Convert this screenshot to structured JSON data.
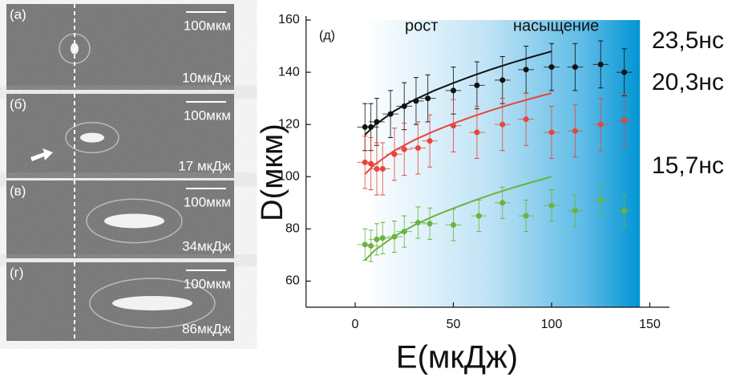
{
  "panels": [
    {
      "label": "(а)",
      "scale": "100мкм",
      "energy": "10мкДж"
    },
    {
      "label": "(б)",
      "scale": "100мкм",
      "energy": "17 мкДж"
    },
    {
      "label": "(в)",
      "scale": "100мкм",
      "energy": "34мкДж"
    },
    {
      "label": "(г)",
      "scale": "100мкм",
      "energy": "86мкДж"
    }
  ],
  "chart_data": {
    "type": "scatter",
    "panel_label": "(д)",
    "annotations": [
      "рост",
      "насыщение"
    ],
    "xlabel": "E(мкДж)",
    "ylabel": "D(мкм)",
    "xlim": [
      -25,
      160
    ],
    "ylim": [
      50,
      160
    ],
    "xticks": [
      0,
      50,
      100,
      150
    ],
    "yticks": [
      60,
      80,
      100,
      120,
      140,
      160
    ],
    "shaded_region": {
      "xlim": [
        5,
        145
      ],
      "color": "#0095d4"
    },
    "series": [
      {
        "name": "23,5нс",
        "color": "#111111",
        "x": [
          5,
          8,
          11,
          18,
          25,
          31,
          37,
          50,
          62,
          75,
          87,
          100,
          112,
          125,
          137
        ],
        "values": [
          119,
          119,
          121,
          124,
          127,
          129,
          130,
          133,
          135,
          137,
          141,
          142,
          142,
          143,
          140
        ],
        "errors": [
          9,
          9,
          9,
          9,
          9,
          9,
          9,
          9,
          9,
          9,
          9,
          9,
          9,
          9,
          9
        ],
        "xerror": 4,
        "fit": {
          "x": [
            5,
            10,
            20,
            30,
            40,
            50,
            60,
            70,
            80,
            90,
            100
          ],
          "values": [
            116,
            119.8,
            125.2,
            129.4,
            132.9,
            135.9,
            138.7,
            141.3,
            143.7,
            145.9,
            148
          ]
        }
      },
      {
        "name": "20,3нс",
        "color": "#e8453c",
        "x": [
          5,
          8,
          11,
          14,
          20,
          25,
          32,
          38,
          50,
          62,
          75,
          87,
          100,
          112,
          125,
          137
        ],
        "values": [
          105.5,
          105,
          103,
          103,
          108.6,
          110.5,
          111,
          113.7,
          119.5,
          117,
          120,
          122,
          117,
          117.5,
          120,
          121.5
        ],
        "errors": [
          10,
          10,
          10,
          10,
          10,
          10,
          10,
          10,
          10,
          10,
          10,
          10,
          10,
          10,
          10,
          10
        ],
        "xerror": 4,
        "fit": {
          "x": [
            5,
            10,
            20,
            30,
            40,
            50,
            60,
            70,
            80,
            90,
            100
          ],
          "values": [
            101,
            104.7,
            110,
            114,
            117.4,
            120.4,
            123.1,
            125.6,
            127.9,
            130,
            132
          ]
        }
      },
      {
        "name": "15,7нс",
        "color": "#6cb33f",
        "x": [
          5,
          8,
          11,
          14,
          20,
          25,
          32,
          38,
          50,
          63,
          75,
          87,
          100,
          112,
          125,
          137
        ],
        "values": [
          74,
          73.5,
          76,
          76.5,
          77,
          79,
          82.4,
          82,
          81.5,
          85,
          90,
          85,
          89,
          87,
          91,
          87
        ],
        "errors": [
          6,
          6,
          6,
          6,
          6,
          6,
          6,
          6,
          6,
          6,
          6,
          6,
          6,
          6,
          6,
          6
        ],
        "xerror": 4,
        "fit": {
          "x": [
            5,
            10,
            20,
            30,
            40,
            50,
            60,
            70,
            80,
            90,
            100
          ],
          "values": [
            68,
            71.8,
            77.2,
            81.4,
            84.9,
            87.9,
            90.7,
            93.3,
            95.7,
            97.9,
            100
          ]
        }
      }
    ]
  }
}
